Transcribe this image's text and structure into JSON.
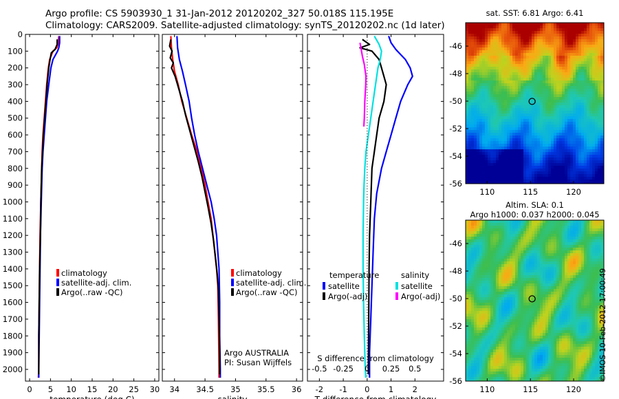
{
  "header": {
    "line1": "Argo profile: CS 5903930_1 31-Jan-2012 20120202_327 50.018S 115.195E",
    "line2": "Climatology: CARS2009. Satellite-adjusted climatology: synTS_20120202.nc (1d later)"
  },
  "colors": {
    "climatology": "#ff0000",
    "satellite": "#0000ff",
    "argo": "#000000",
    "sat_salinity": "#00e0e0",
    "argo_salinity": "#ff00ff"
  },
  "chart_data": [
    {
      "type": "line",
      "panel": "temperature",
      "xlabel": "temperature (deg C)",
      "ylabel": "",
      "xlim": [
        -1,
        31
      ],
      "ylim": [
        2070,
        0
      ],
      "xticks": [
        0,
        5,
        10,
        15,
        20,
        25,
        30
      ],
      "yticks": [
        0,
        100,
        200,
        300,
        400,
        500,
        600,
        700,
        800,
        900,
        1000,
        1100,
        1200,
        1300,
        1400,
        1500,
        1600,
        1700,
        1800,
        1900,
        2000
      ],
      "legend": [
        "climatology",
        "satellite-adj. clim.",
        "Argo(..raw -QC)"
      ],
      "series": [
        {
          "name": "climatology",
          "color": "#ff0000",
          "points": [
            [
              7,
              10
            ],
            [
              6.9,
              50
            ],
            [
              6.5,
              80
            ],
            [
              5.6,
              100
            ],
            [
              4.8,
              150
            ],
            [
              4.5,
              200
            ],
            [
              4.1,
              300
            ],
            [
              3.8,
              400
            ],
            [
              3.5,
              500
            ],
            [
              3.2,
              600
            ],
            [
              3,
              700
            ],
            [
              2.9,
              800
            ],
            [
              2.7,
              1000
            ],
            [
              2.5,
              1200
            ],
            [
              2.4,
              1400
            ],
            [
              2.3,
              1600
            ],
            [
              2.2,
              1800
            ],
            [
              2.2,
              2000
            ],
            [
              2.1,
              2050
            ]
          ]
        },
        {
          "name": "satellite-adj. clim.",
          "color": "#0000ff",
          "points": [
            [
              7.2,
              10
            ],
            [
              7.2,
              50
            ],
            [
              7,
              80
            ],
            [
              6.7,
              100
            ],
            [
              5.6,
              150
            ],
            [
              5.1,
              200
            ],
            [
              4.6,
              300
            ],
            [
              4.1,
              400
            ],
            [
              3.8,
              500
            ],
            [
              3.5,
              600
            ],
            [
              3.2,
              700
            ],
            [
              3,
              800
            ],
            [
              2.8,
              1000
            ],
            [
              2.6,
              1200
            ],
            [
              2.5,
              1400
            ],
            [
              2.4,
              1600
            ],
            [
              2.3,
              1800
            ],
            [
              2.2,
              2000
            ],
            [
              2.2,
              2050
            ]
          ]
        },
        {
          "name": "Argo(..raw -QC)",
          "color": "#000000",
          "points": [
            [
              6.6,
              30
            ],
            [
              6.6,
              60
            ],
            [
              6.1,
              90
            ],
            [
              5.2,
              110
            ],
            [
              4.9,
              150
            ],
            [
              4.6,
              200
            ],
            [
              4.2,
              300
            ],
            [
              3.9,
              400
            ],
            [
              3.6,
              500
            ],
            [
              3.3,
              600
            ],
            [
              3.1,
              700
            ],
            [
              2.9,
              800
            ],
            [
              2.7,
              1000
            ],
            [
              2.6,
              1200
            ],
            [
              2.4,
              1400
            ],
            [
              2.3,
              1600
            ],
            [
              2.2,
              1800
            ],
            [
              2.2,
              2000
            ],
            [
              2.2,
              2030
            ]
          ]
        }
      ]
    },
    {
      "type": "line",
      "panel": "salinity",
      "xlabel": "salinity",
      "xlim": [
        33.8,
        36.1
      ],
      "ylim": [
        2070,
        0
      ],
      "xticks": [
        34,
        34.5,
        35,
        35.5,
        36
      ],
      "yticks": [
        0,
        100,
        200,
        300,
        400,
        500,
        600,
        700,
        800,
        900,
        1000,
        1100,
        1200,
        1300,
        1400,
        1500,
        1600,
        1700,
        1800,
        1900,
        2000
      ],
      "legend": [
        "climatology",
        "satellite-adj. clim.",
        "Argo(..raw -QC)"
      ],
      "annotation": [
        "Argo AUSTRALIA",
        "PI: Susan Wijffels"
      ],
      "series": [
        {
          "name": "climatology",
          "color": "#ff0000",
          "points": [
            [
              33.94,
              10
            ],
            [
              33.95,
              80
            ],
            [
              33.97,
              150
            ],
            [
              34.0,
              220
            ],
            [
              34.06,
              300
            ],
            [
              34.12,
              400
            ],
            [
              34.2,
              500
            ],
            [
              34.28,
              600
            ],
            [
              34.37,
              700
            ],
            [
              34.44,
              800
            ],
            [
              34.5,
              900
            ],
            [
              34.55,
              1000
            ],
            [
              34.6,
              1100
            ],
            [
              34.63,
              1200
            ],
            [
              34.66,
              1300
            ],
            [
              34.69,
              1400
            ],
            [
              34.71,
              1500
            ],
            [
              34.72,
              1700
            ],
            [
              34.73,
              2000
            ],
            [
              34.73,
              2050
            ]
          ]
        },
        {
          "name": "satellite-adj. clim.",
          "color": "#0000ff",
          "points": [
            [
              34.04,
              10
            ],
            [
              34.05,
              80
            ],
            [
              34.08,
              150
            ],
            [
              34.13,
              220
            ],
            [
              34.18,
              300
            ],
            [
              34.24,
              400
            ],
            [
              34.28,
              500
            ],
            [
              34.33,
              600
            ],
            [
              34.39,
              700
            ],
            [
              34.46,
              800
            ],
            [
              34.53,
              900
            ],
            [
              34.6,
              1000
            ],
            [
              34.65,
              1100
            ],
            [
              34.69,
              1200
            ],
            [
              34.71,
              1300
            ],
            [
              34.73,
              1400
            ],
            [
              34.74,
              1600
            ],
            [
              34.74,
              1800
            ],
            [
              34.75,
              2000
            ],
            [
              34.75,
              2050
            ]
          ]
        },
        {
          "name": "Argo(..raw -QC)",
          "color": "#000000",
          "points": [
            [
              33.94,
              30
            ],
            [
              33.92,
              70
            ],
            [
              33.96,
              100
            ],
            [
              33.93,
              140
            ],
            [
              33.98,
              170
            ],
            [
              33.95,
              200
            ],
            [
              34.01,
              250
            ],
            [
              34.05,
              300
            ],
            [
              34.09,
              350
            ],
            [
              34.13,
              400
            ],
            [
              34.18,
              480
            ],
            [
              34.24,
              560
            ],
            [
              34.3,
              640
            ],
            [
              34.39,
              760
            ],
            [
              34.45,
              850
            ],
            [
              34.5,
              940
            ],
            [
              34.55,
              1030
            ],
            [
              34.6,
              1130
            ],
            [
              34.64,
              1230
            ],
            [
              34.67,
              1330
            ],
            [
              34.7,
              1430
            ],
            [
              34.72,
              1530
            ],
            [
              34.73,
              1700
            ],
            [
              34.74,
              1900
            ],
            [
              34.74,
              2030
            ]
          ]
        }
      ]
    },
    {
      "type": "line",
      "panel": "difference",
      "xlabel": "T difference from climatology",
      "top_axis_label": "S difference from climatology",
      "xlim": [
        -2.5,
        3.2
      ],
      "ylim": [
        2070,
        0
      ],
      "xticks": [
        -2,
        -1,
        0,
        1,
        2
      ],
      "top_ticks": [
        "-0.5",
        "-0.25",
        "0",
        "0.25",
        "0.5"
      ],
      "yticks": [
        0,
        100,
        200,
        300,
        400,
        500,
        600,
        700,
        800,
        900,
        1000,
        1100,
        1200,
        1300,
        1400,
        1500,
        1600,
        1700,
        1800,
        1900,
        2000
      ],
      "legend_groups": [
        {
          "title": "temperature",
          "items": [
            "satellite",
            "Argo(-adj)"
          ]
        },
        {
          "title": "salinity",
          "items": [
            "satellite",
            "Argo(-adj)"
          ]
        }
      ],
      "series": [
        {
          "name": "satellite",
          "group": "temperature",
          "color": "#0000ff",
          "points": [
            [
              0.9,
              10
            ],
            [
              1,
              50
            ],
            [
              1.2,
              90
            ],
            [
              1.6,
              150
            ],
            [
              1.8,
              200
            ],
            [
              1.9,
              250
            ],
            [
              1.7,
              300
            ],
            [
              1.4,
              400
            ],
            [
              1.2,
              500
            ],
            [
              1.0,
              600
            ],
            [
              0.8,
              700
            ],
            [
              0.6,
              800
            ],
            [
              0.4,
              950
            ],
            [
              0.3,
              1100
            ],
            [
              0.25,
              1300
            ],
            [
              0.2,
              1500
            ],
            [
              0.15,
              1700
            ],
            [
              0.1,
              1900
            ],
            [
              0.1,
              2050
            ]
          ]
        },
        {
          "name": "Argo(-adj)",
          "group": "temperature",
          "color": "#000000",
          "points": [
            [
              -0.2,
              30
            ],
            [
              0.1,
              60
            ],
            [
              -0.3,
              80
            ],
            [
              0.2,
              100
            ],
            [
              0.5,
              150
            ],
            [
              0.6,
              200
            ],
            [
              0.7,
              250
            ],
            [
              0.8,
              300
            ],
            [
              0.7,
              400
            ],
            [
              0.5,
              500
            ],
            [
              0.4,
              600
            ],
            [
              0.3,
              700
            ],
            [
              0.2,
              800
            ],
            [
              0.15,
              1000
            ],
            [
              0.1,
              1200
            ],
            [
              0.08,
              1400
            ],
            [
              0.07,
              1600
            ],
            [
              0.06,
              1800
            ],
            [
              0.05,
              2000
            ],
            [
              0.05,
              2030
            ]
          ]
        },
        {
          "name": "satellite",
          "group": "salinity",
          "color": "#00e0e0",
          "points": [
            [
              0.3,
              10
            ],
            [
              0.5,
              60
            ],
            [
              0.6,
              100
            ],
            [
              0.55,
              150
            ],
            [
              0.45,
              200
            ],
            [
              0.35,
              300
            ],
            [
              0.25,
              400
            ],
            [
              0.15,
              500
            ],
            [
              0.05,
              600
            ],
            [
              -0.05,
              700
            ],
            [
              -0.1,
              800
            ],
            [
              -0.13,
              900
            ],
            [
              -0.15,
              1000
            ],
            [
              -0.17,
              1200
            ],
            [
              -0.17,
              1400
            ],
            [
              -0.15,
              1600
            ],
            [
              -0.12,
              1800
            ],
            [
              -0.08,
              2000
            ],
            [
              -0.06,
              2050
            ]
          ]
        },
        {
          "name": "Argo(-adj)",
          "group": "salinity",
          "color": "#ff00ff",
          "points": [
            [
              -0.3,
              50
            ],
            [
              -0.25,
              90
            ],
            [
              -0.2,
              130
            ],
            [
              -0.12,
              180
            ],
            [
              -0.05,
              250
            ],
            [
              -0.06,
              300
            ],
            [
              -0.1,
              400
            ],
            [
              -0.12,
              500
            ],
            [
              -0.14,
              550
            ]
          ]
        }
      ]
    },
    {
      "type": "heatmap",
      "panel": "sst_map",
      "title": "sat. SST: 6.81  Argo: 6.41",
      "xlim": [
        107.5,
        123.5
      ],
      "ylim": [
        -56,
        -44.3
      ],
      "xticks": [
        110,
        115,
        120
      ],
      "yticks": [
        -46,
        -48,
        -50,
        -52,
        -54,
        -56
      ],
      "marker": {
        "lon": 115.195,
        "lat": -50.018
      }
    },
    {
      "type": "heatmap",
      "panel": "sla_map",
      "title": "Altim. SLA: 0.1",
      "subtitle": "Argo h1000: 0.037 h2000: 0.045",
      "xlim": [
        107.5,
        123.5
      ],
      "ylim": [
        -56,
        -44.3
      ],
      "xticks": [
        110,
        115,
        120
      ],
      "yticks": [
        -46,
        -48,
        -50,
        -52,
        -54,
        -56
      ],
      "marker": {
        "lon": 115.195,
        "lat": -50.018
      }
    }
  ],
  "footer": {
    "stamp": "©IMOS 10-Feb-2012 17:00:49"
  }
}
